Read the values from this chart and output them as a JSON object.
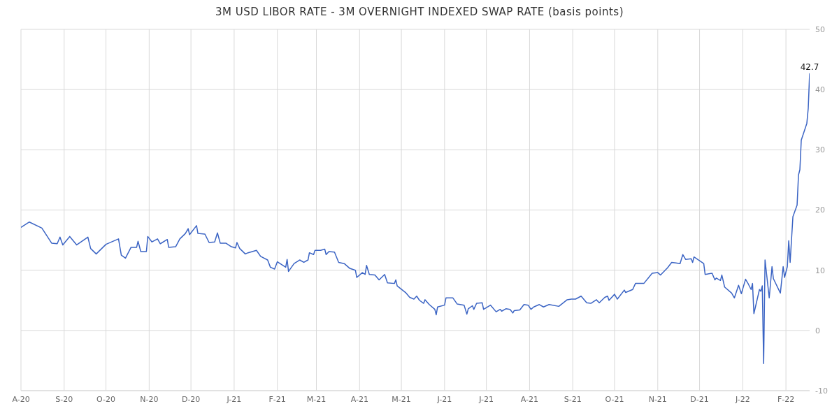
{
  "chart_data": {
    "type": "line",
    "title": "3M USD LIBOR RATE - 3M OVERNIGHT INDEXED SWAP RATE (basis points)",
    "x": [
      "2020-08-01",
      "2020-08-07",
      "2020-08-16",
      "2020-08-23",
      "2020-08-27",
      "2020-08-29",
      "2020-08-31",
      "2020-09-05",
      "2020-09-10",
      "2020-09-18",
      "2020-09-20",
      "2020-09-24",
      "2020-10-01",
      "2020-10-10",
      "2020-10-12",
      "2020-10-15",
      "2020-10-19",
      "2020-10-23",
      "2020-10-24",
      "2020-10-26",
      "2020-10-30",
      "2020-10-31",
      "2020-11-03",
      "2020-11-07",
      "2020-11-09",
      "2020-11-14",
      "2020-11-15",
      "2020-11-20",
      "2020-11-23",
      "2020-11-27",
      "2020-11-29",
      "2020-11-30",
      "2020-12-05",
      "2020-12-06",
      "2020-12-11",
      "2020-12-14",
      "2020-12-18",
      "2020-12-20",
      "2020-12-22",
      "2020-12-26",
      "2020-12-30",
      "2021-01-02",
      "2021-01-03",
      "2021-01-05",
      "2021-01-09",
      "2021-01-11",
      "2021-01-17",
      "2021-01-20",
      "2021-01-25",
      "2021-01-27",
      "2021-01-30",
      "2021-02-01",
      "2021-02-07",
      "2021-02-08",
      "2021-02-09",
      "2021-02-13",
      "2021-02-17",
      "2021-02-20",
      "2021-02-23",
      "2021-02-24",
      "2021-02-27",
      "2021-02-28",
      "2021-03-04",
      "2021-03-07",
      "2021-03-08",
      "2021-03-10",
      "2021-03-14",
      "2021-03-17",
      "2021-03-21",
      "2021-03-25",
      "2021-03-29",
      "2021-03-30",
      "2021-04-03",
      "2021-04-05",
      "2021-04-06",
      "2021-04-08",
      "2021-04-12",
      "2021-04-15",
      "2021-04-19",
      "2021-04-21",
      "2021-04-26",
      "2021-04-27",
      "2021-04-28",
      "2021-05-04",
      "2021-05-07",
      "2021-05-10",
      "2021-05-12",
      "2021-05-14",
      "2021-05-17",
      "2021-05-18",
      "2021-05-21",
      "2021-05-25",
      "2021-05-26",
      "2021-05-27",
      "2021-06-01",
      "2021-06-02",
      "2021-06-07",
      "2021-06-10",
      "2021-06-15",
      "2021-06-17",
      "2021-06-18",
      "2021-06-21",
      "2021-06-22",
      "2021-06-24",
      "2021-06-28",
      "2021-06-29",
      "2021-07-04",
      "2021-07-08",
      "2021-07-11",
      "2021-07-12",
      "2021-07-15",
      "2021-07-18",
      "2021-07-20",
      "2021-07-21",
      "2021-07-25",
      "2021-07-28",
      "2021-07-31",
      "2021-08-02",
      "2021-08-04",
      "2021-08-08",
      "2021-08-11",
      "2021-08-15",
      "2021-08-22",
      "2021-08-28",
      "2021-08-31",
      "2021-09-03",
      "2021-09-07",
      "2021-09-11",
      "2021-09-14",
      "2021-09-18",
      "2021-09-20",
      "2021-09-24",
      "2021-09-26",
      "2021-09-27",
      "2021-10-01",
      "2021-10-03",
      "2021-10-08",
      "2021-10-09",
      "2021-10-14",
      "2021-10-16",
      "2021-10-22",
      "2021-10-28",
      "2021-11-01",
      "2021-11-03",
      "2021-11-08",
      "2021-11-11",
      "2021-11-14",
      "2021-11-17",
      "2021-11-19",
      "2021-11-21",
      "2021-11-25",
      "2021-11-26",
      "2021-11-27",
      "2021-12-04",
      "2021-12-05",
      "2021-12-10",
      "2021-12-12",
      "2021-12-13",
      "2021-12-16",
      "2021-12-17",
      "2021-12-19",
      "2021-12-24",
      "2021-12-26",
      "2021-12-29",
      "2021-12-31",
      "2022-01-03",
      "2022-01-05",
      "2022-01-07",
      "2022-01-08",
      "2022-01-09",
      "2022-01-13",
      "2022-01-14",
      "2022-01-15",
      "2022-01-16",
      "2022-01-17",
      "2022-01-20",
      "2022-01-22",
      "2022-01-23",
      "2022-01-28",
      "2022-01-30",
      "2022-01-31",
      "2022-02-02",
      "2022-02-03",
      "2022-02-04",
      "2022-02-06",
      "2022-02-09",
      "2022-02-10",
      "2022-02-11",
      "2022-02-12",
      "2022-02-16",
      "2022-02-17",
      "2022-02-18"
    ],
    "series": [
      {
        "color": "#3b64c4",
        "values": [
          17.1,
          18.0,
          17.0,
          14.5,
          14.4,
          15.5,
          14.2,
          15.6,
          14.2,
          15.5,
          13.6,
          12.7,
          14.3,
          15.2,
          12.5,
          12.0,
          13.8,
          13.8,
          14.8,
          13.1,
          13.1,
          15.6,
          14.7,
          15.2,
          14.4,
          15.1,
          13.8,
          13.9,
          15.2,
          16.1,
          16.9,
          15.9,
          17.4,
          16.1,
          16.0,
          14.6,
          14.7,
          16.2,
          14.5,
          14.5,
          13.9,
          13.7,
          14.6,
          13.6,
          12.7,
          12.9,
          13.3,
          12.3,
          11.7,
          10.5,
          10.2,
          11.4,
          10.5,
          11.8,
          9.8,
          11.1,
          11.7,
          11.3,
          11.7,
          12.9,
          12.6,
          13.3,
          13.3,
          13.5,
          12.6,
          13.1,
          13.0,
          11.3,
          11.1,
          10.3,
          10.0,
          8.8,
          9.6,
          9.3,
          10.8,
          9.3,
          9.2,
          8.4,
          9.3,
          7.9,
          7.8,
          8.4,
          7.4,
          6.3,
          5.5,
          5.2,
          5.7,
          5.0,
          4.5,
          5.1,
          4.3,
          3.5,
          2.6,
          3.9,
          4.2,
          5.4,
          5.4,
          4.4,
          4.2,
          2.7,
          3.6,
          4.1,
          3.5,
          4.5,
          4.6,
          3.5,
          4.2,
          3.1,
          3.5,
          3.2,
          3.6,
          3.5,
          2.9,
          3.3,
          3.4,
          4.3,
          4.2,
          3.5,
          3.9,
          4.3,
          3.9,
          4.3,
          4.0,
          5.1,
          5.2,
          5.2,
          5.7,
          4.6,
          4.5,
          5.1,
          4.6,
          5.5,
          5.7,
          5.0,
          6.0,
          5.2,
          6.7,
          6.3,
          6.8,
          7.8,
          7.8,
          9.5,
          9.6,
          9.2,
          10.4,
          11.3,
          11.2,
          11.1,
          12.6,
          11.8,
          11.9,
          11.3,
          12.2,
          11.1,
          9.3,
          9.5,
          8.4,
          8.7,
          8.3,
          9.2,
          7.2,
          6.2,
          5.4,
          7.5,
          6.1,
          8.5,
          7.7,
          6.8,
          7.8,
          2.8,
          6.8,
          6.5,
          7.4,
          -5.5,
          11.7,
          5.4,
          10.6,
          8.6,
          6.2,
          10.6,
          8.8,
          10.6,
          14.9,
          11.3,
          18.9,
          20.8,
          25.8,
          26.7,
          31.6,
          34.4,
          36.9,
          42.7
        ]
      }
    ],
    "xlim": [
      "2020-08-01",
      "2022-02-18"
    ],
    "xticks": [
      {
        "value": "2020-08-01",
        "label": "A-20"
      },
      {
        "value": "2020-09-01",
        "label": "S-20"
      },
      {
        "value": "2020-10-01",
        "label": "O-20"
      },
      {
        "value": "2020-11-01",
        "label": "N-20"
      },
      {
        "value": "2020-12-01",
        "label": "D-20"
      },
      {
        "value": "2021-01-01",
        "label": "J-21"
      },
      {
        "value": "2021-02-01",
        "label": "F-21"
      },
      {
        "value": "2021-03-01",
        "label": "M-21"
      },
      {
        "value": "2021-04-01",
        "label": "A-21"
      },
      {
        "value": "2021-05-01",
        "label": "M-21"
      },
      {
        "value": "2021-06-01",
        "label": "J-21"
      },
      {
        "value": "2021-07-01",
        "label": "J-21"
      },
      {
        "value": "2021-08-01",
        "label": "A-21"
      },
      {
        "value": "2021-09-01",
        "label": "S-21"
      },
      {
        "value": "2021-10-01",
        "label": "O-21"
      },
      {
        "value": "2021-11-01",
        "label": "N-21"
      },
      {
        "value": "2021-12-01",
        "label": "D-21"
      },
      {
        "value": "2022-01-01",
        "label": "J-22"
      },
      {
        "value": "2022-02-01",
        "label": "F-22"
      }
    ],
    "ylim": [
      -10,
      50
    ],
    "yticks": [
      -10,
      0,
      10,
      20,
      30,
      40,
      50
    ],
    "grid": true,
    "marker": "none",
    "annotations": [
      {
        "text": "42.7",
        "x": "2022-02-18",
        "y": 42.7
      }
    ]
  }
}
